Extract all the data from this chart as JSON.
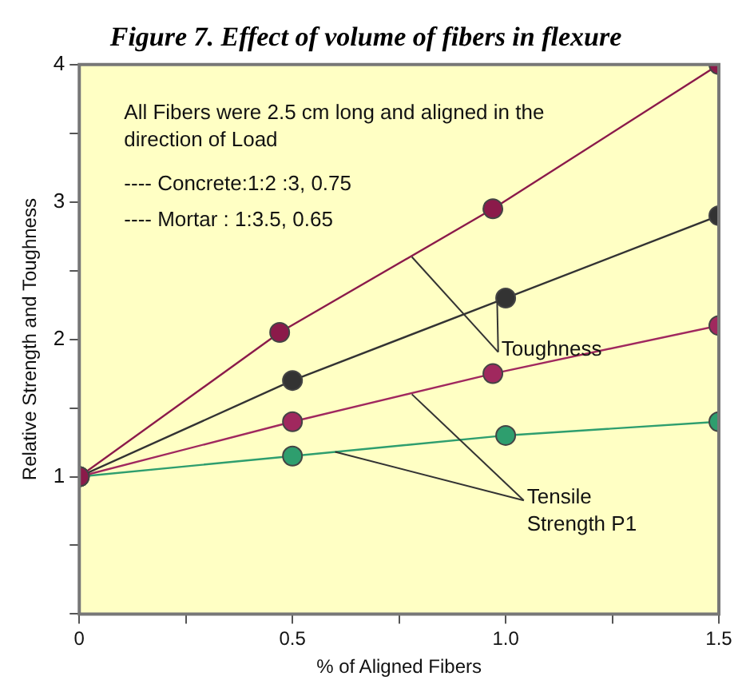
{
  "chart_data": {
    "type": "line",
    "title": "Figure 7. Effect of volume of fibers in flexure",
    "xlabel": "% of Aligned Fibers",
    "ylabel": "Relative Strength and Toughness",
    "series": [
      {
        "color": "#8b1a4a",
        "x": [
          0,
          0.47,
          0.97,
          1.5
        ],
        "values": [
          1,
          2.05,
          2.95,
          4
        ]
      },
      {
        "color": "#333333",
        "x": [
          0,
          0.5,
          1.0,
          1.5
        ],
        "values": [
          1,
          1.7,
          2.3,
          2.9
        ]
      },
      {
        "color": "#a0285e",
        "x": [
          0,
          0.5,
          0.97,
          1.5
        ],
        "values": [
          1,
          1.4,
          1.75,
          2.1
        ]
      },
      {
        "color": "#2e9e6e",
        "x": [
          0,
          0.5,
          1.0,
          1.5
        ],
        "values": [
          1,
          1.15,
          1.3,
          1.4
        ]
      }
    ],
    "xlim": [
      0,
      1.5
    ],
    "xticks": [
      0,
      {
        "value": 0.25,
        "label": null
      },
      0.5,
      {
        "value": 0.75,
        "label": null
      },
      {
        "value": 1,
        "label": "1.0"
      },
      {
        "value": 1.25,
        "label": null
      },
      1.5
    ],
    "ylim": [
      0,
      4
    ],
    "yticks": [
      {
        "value": 0,
        "label": null
      },
      {
        "value": 0.5,
        "label": null
      },
      1,
      {
        "value": 1.5,
        "label": null
      },
      2,
      {
        "value": 2.5,
        "label": null
      },
      3,
      {
        "value": 3.5,
        "label": null
      },
      4
    ],
    "annotations": [
      "All Fibers were 2.5 cm long and aligned in the direction of Load",
      "---- Concrete:1:2 :3, 0.75",
      "---- Mortar : 1:3.5, 0.65",
      {
        "text": "Toughness",
        "x": 0.78,
        "y": 2.6
      },
      {
        "text": "Tensile Strength P1",
        "x": 0.78,
        "y": 1.6
      }
    ],
    "grid": false,
    "legend": false,
    "marker": "circle",
    "line_style": "solid"
  }
}
